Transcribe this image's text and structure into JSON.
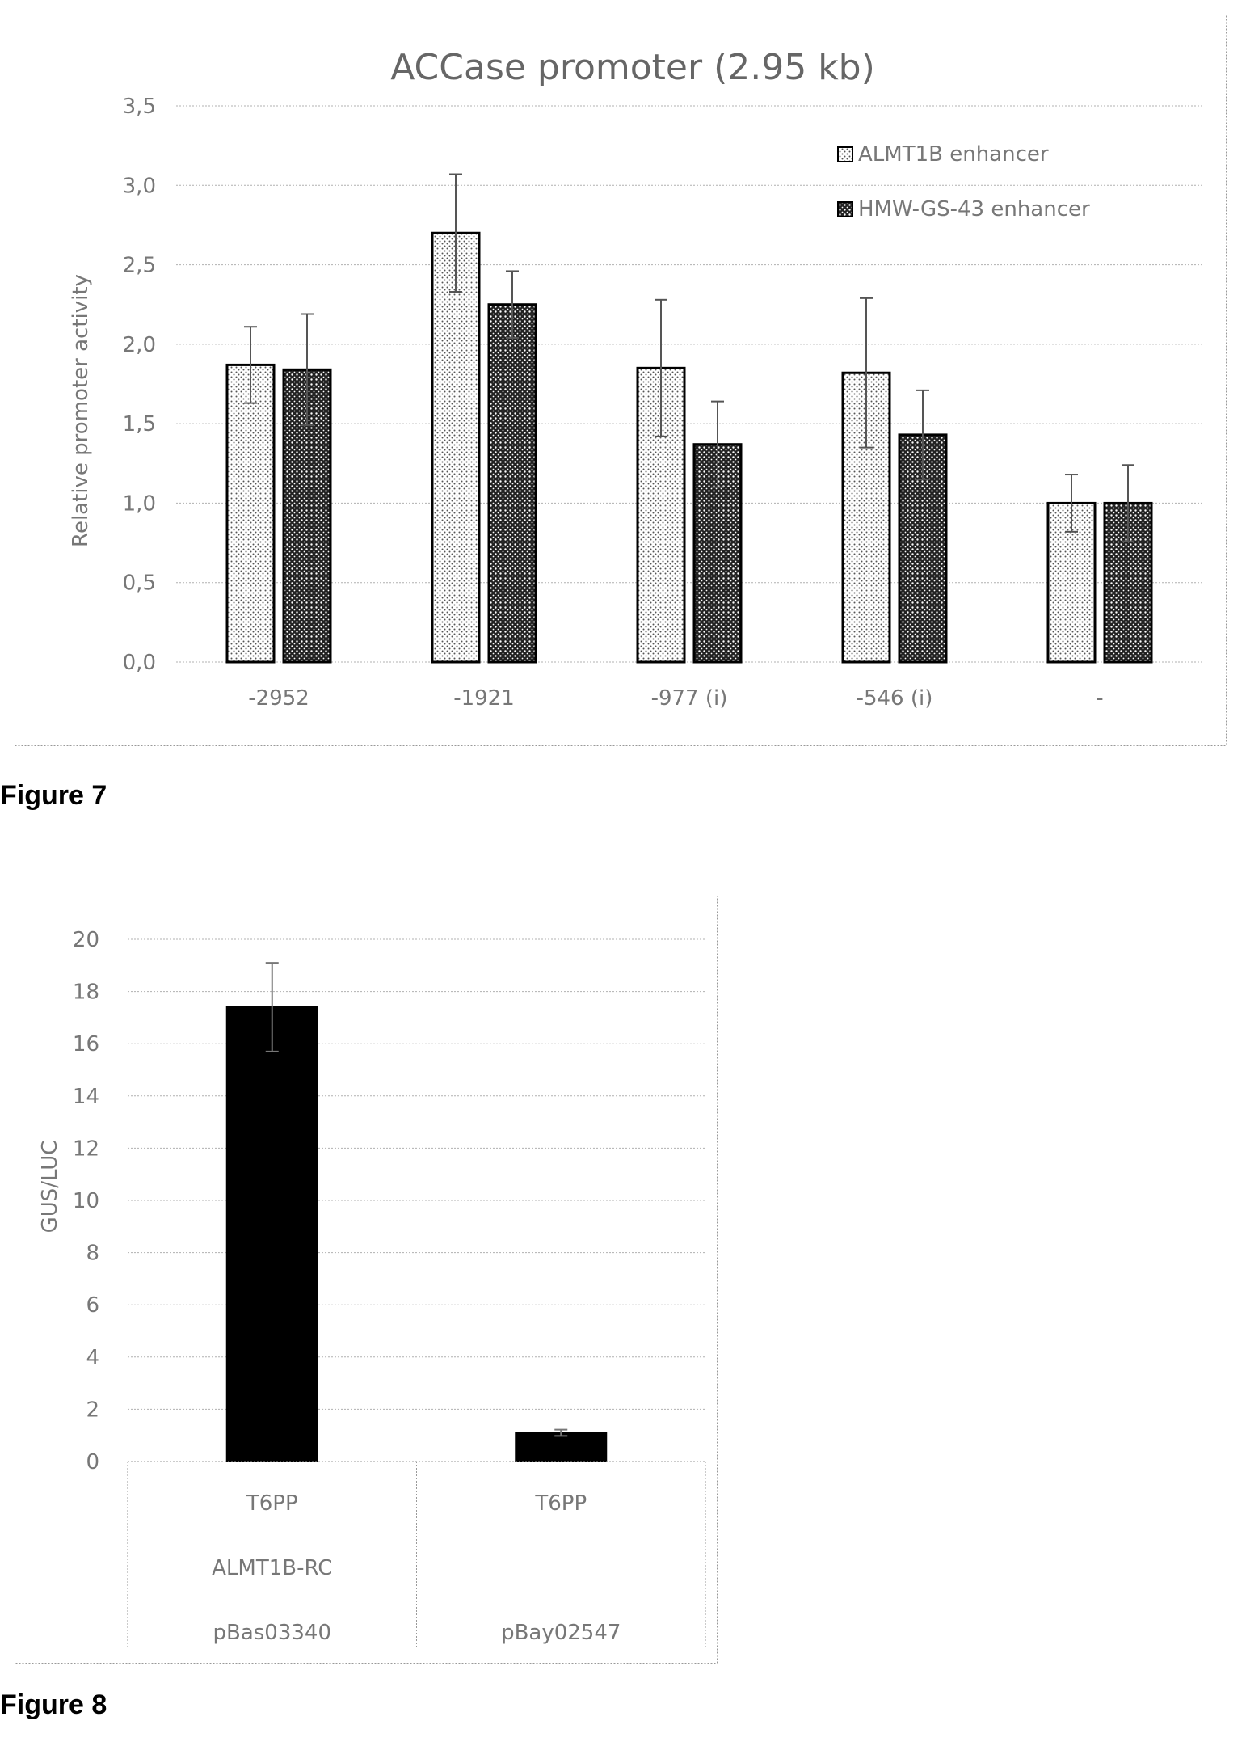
{
  "figures": {
    "figure7_label": "Figure 7",
    "figure8_label": "Figure 8"
  },
  "colors": {
    "axis_text": "#777777",
    "gridline": "#b0b0b0",
    "bar_stroke": "#000000",
    "bar_fill_dark": "#000000",
    "frame": "#999999"
  },
  "chart_data": [
    {
      "type": "bar",
      "title": "ACCase promoter (2.95 kb)",
      "xlabel": "",
      "ylabel": "Relative promoter activity",
      "ylim": [
        0,
        3.5
      ],
      "yticks": [
        "0,0",
        "0,5",
        "1,0",
        "1,5",
        "2,0",
        "2,5",
        "3,0",
        "3,5"
      ],
      "grid": true,
      "legend_position": "top-right",
      "categories": [
        "-2952",
        "-1921",
        "-977 (i)",
        "-546 (i)",
        "-"
      ],
      "series": [
        {
          "name": "ALMT1B enhancer",
          "pattern": "light-dotted",
          "values": [
            1.87,
            2.7,
            1.85,
            1.82,
            1.0
          ],
          "errors": [
            0.24,
            0.37,
            0.43,
            0.47,
            0.18
          ]
        },
        {
          "name": "HMW-GS-43 enhancer",
          "pattern": "dark-dotted",
          "values": [
            1.84,
            2.25,
            1.37,
            1.43,
            1.0
          ],
          "errors": [
            0.35,
            0.21,
            0.27,
            0.28,
            0.24
          ]
        }
      ]
    },
    {
      "type": "bar",
      "title": "",
      "xlabel": "",
      "ylabel": "GUS/LUC",
      "ylim": [
        0,
        20
      ],
      "yticks": [
        "0",
        "2",
        "4",
        "6",
        "8",
        "10",
        "12",
        "14",
        "16",
        "18",
        "20"
      ],
      "grid": true,
      "categories": [
        [
          "T6PP",
          "ALMT1B-RC",
          "pBas03340"
        ],
        [
          "T6PP",
          "",
          "pBay02547"
        ]
      ],
      "series": [
        {
          "values": [
            17.4,
            1.1
          ],
          "errors": [
            1.7,
            0.12
          ]
        }
      ]
    }
  ]
}
